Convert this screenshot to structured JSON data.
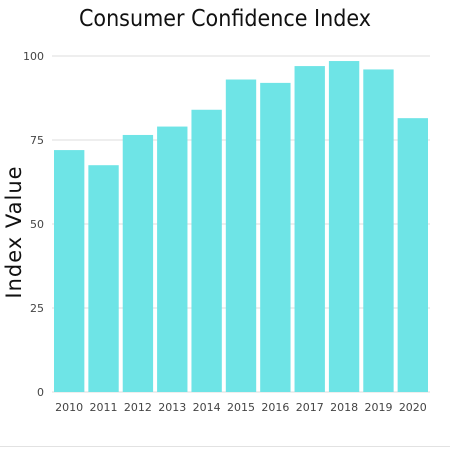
{
  "chart_data": {
    "type": "bar",
    "title": "Consumer Confidence Index",
    "xlabel": "",
    "ylabel": "Index Value",
    "categories": [
      "2010",
      "2011",
      "2012",
      "2013",
      "2014",
      "2015",
      "2016",
      "2017",
      "2018",
      "2019",
      "2020"
    ],
    "values": [
      72,
      67.5,
      76.5,
      79,
      84,
      93,
      92,
      97,
      98.5,
      96,
      81.5
    ],
    "ylim": [
      0,
      100
    ],
    "yticks": [
      0,
      25,
      50,
      75,
      100
    ],
    "grid": true,
    "legend": "none",
    "bar_color": "#6ee4e6",
    "grid_color": "#dddddd"
  }
}
